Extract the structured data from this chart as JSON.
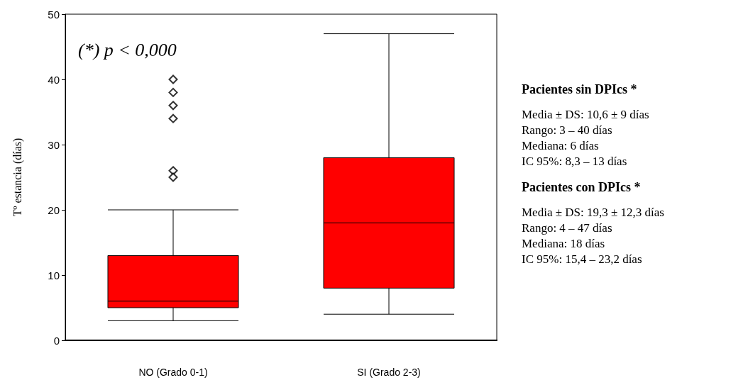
{
  "chart_data": {
    "type": "box",
    "ylabel": "Tº estancia (días)",
    "categories": [
      "NO (Grado 0-1)",
      "SI (Grado 2-3)"
    ],
    "color": "#ff0000",
    "boxes": [
      {
        "low": 3,
        "q1": 5,
        "median": 6,
        "q3": 13,
        "high": 20,
        "outliers": [
          40,
          38,
          36,
          34,
          26,
          25
        ]
      },
      {
        "low": 4,
        "q1": 8,
        "median": 18,
        "q3": 28,
        "high": 47
      }
    ],
    "ylim": [
      0,
      50
    ],
    "yticks": [
      0,
      10,
      20,
      30,
      40,
      50
    ],
    "grid": false,
    "marker": "diamond",
    "annotations": [
      "(*) p < 0,000",
      "Pacientes sin DPIcs *",
      "Media ± DS: 10,6 ± 9 días",
      "Rango: 3 – 40 días",
      "Mediana: 6 días",
      "IC 95%: 8,3 – 13 días",
      "Pacientes con DPIcs *",
      "Media ± DS: 19,3 ± 12,3 días",
      "Rango: 4 – 47 días",
      "Mediana: 18 días",
      "IC 95%: 15,4 – 23,2 días"
    ]
  }
}
